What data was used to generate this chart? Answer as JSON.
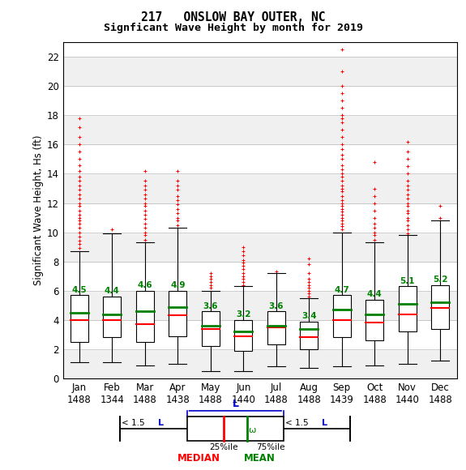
{
  "title1": "217   ONSLOW BAY OUTER, NC",
  "title2": "Signficant Wave Height by month for 2019",
  "ylabel": "Significant Wave Height, Hs (ft)",
  "months": [
    "Jan",
    "Feb",
    "Mar",
    "Apr",
    "May",
    "Jun",
    "Jul",
    "Aug",
    "Sep",
    "Oct",
    "Nov",
    "Dec"
  ],
  "counts": [
    1488,
    1344,
    1488,
    1438,
    1488,
    1440,
    1488,
    1488,
    1439,
    1488,
    1440,
    1488
  ],
  "ylim": [
    0,
    23
  ],
  "yticks": [
    0,
    2,
    4,
    6,
    8,
    10,
    12,
    14,
    16,
    18,
    20,
    22
  ],
  "box_stats": [
    {
      "q1": 2.5,
      "median": 4.0,
      "q3": 5.7,
      "mean": 4.5,
      "whislo": 1.1,
      "whishi": 8.7
    },
    {
      "q1": 2.8,
      "median": 4.0,
      "q3": 5.6,
      "mean": 4.4,
      "whislo": 1.1,
      "whishi": 9.9
    },
    {
      "q1": 2.5,
      "median": 3.7,
      "q3": 6.0,
      "mean": 4.6,
      "whislo": 0.9,
      "whishi": 9.3
    },
    {
      "q1": 2.9,
      "median": 4.3,
      "q3": 6.0,
      "mean": 4.9,
      "whislo": 1.0,
      "whishi": 10.3
    },
    {
      "q1": 2.2,
      "median": 3.4,
      "q3": 4.6,
      "mean": 3.6,
      "whislo": 0.5,
      "whishi": 6.0
    },
    {
      "q1": 1.9,
      "median": 2.9,
      "q3": 4.0,
      "mean": 3.2,
      "whislo": 0.5,
      "whishi": 6.3
    },
    {
      "q1": 2.3,
      "median": 3.5,
      "q3": 4.6,
      "mean": 3.6,
      "whislo": 0.8,
      "whishi": 7.2
    },
    {
      "q1": 2.0,
      "median": 2.8,
      "q3": 3.9,
      "mean": 3.4,
      "whislo": 0.7,
      "whishi": 5.5
    },
    {
      "q1": 2.8,
      "median": 4.0,
      "q3": 5.7,
      "mean": 4.7,
      "whislo": 0.8,
      "whishi": 10.0
    },
    {
      "q1": 2.6,
      "median": 3.8,
      "q3": 5.4,
      "mean": 4.4,
      "whislo": 0.9,
      "whishi": 9.3
    },
    {
      "q1": 3.2,
      "median": 4.4,
      "q3": 6.3,
      "mean": 5.1,
      "whislo": 1.0,
      "whishi": 9.8
    },
    {
      "q1": 3.4,
      "median": 4.8,
      "q3": 6.4,
      "mean": 5.2,
      "whislo": 1.2,
      "whishi": 10.8
    }
  ],
  "outliers": [
    [
      8.9,
      9.2,
      9.4,
      9.7,
      10.0,
      10.3,
      10.6,
      10.8,
      11.0,
      11.2,
      11.5,
      11.8,
      12.0,
      12.3,
      12.6,
      12.9,
      13.2,
      13.5,
      13.8,
      14.2,
      14.6,
      15.0,
      15.5,
      16.0,
      16.5,
      17.2,
      17.8
    ],
    [
      10.2
    ],
    [
      9.5,
      9.8,
      10.0,
      10.3,
      10.6,
      10.9,
      11.2,
      11.5,
      11.8,
      12.0,
      12.3,
      12.6,
      12.9,
      13.2,
      13.5,
      14.2
    ],
    [
      10.5,
      10.8,
      11.0,
      11.3,
      11.6,
      11.9,
      12.2,
      12.5,
      12.9,
      13.2,
      13.5,
      14.2
    ],
    [
      6.2,
      6.4,
      6.6,
      6.8,
      7.0,
      7.2
    ],
    [
      6.4,
      6.6,
      6.8,
      7.0,
      7.2,
      7.5,
      7.7,
      7.9,
      8.1,
      8.4,
      8.7,
      9.0
    ],
    [
      7.3
    ],
    [
      5.6,
      5.8,
      6.0,
      6.2,
      6.4,
      6.6,
      6.8,
      7.2,
      7.8,
      8.2
    ],
    [
      10.2,
      10.4,
      10.6,
      10.8,
      11.0,
      11.2,
      11.4,
      11.6,
      11.8,
      12.0,
      12.2,
      12.5,
      12.8,
      13.0,
      13.2,
      13.5,
      13.8,
      14.0,
      14.3,
      14.6,
      15.0,
      15.3,
      15.7,
      16.0,
      16.5,
      17.0,
      17.5,
      17.8,
      18.0,
      18.5,
      19.0,
      19.5,
      20.0,
      21.0,
      22.5
    ],
    [
      9.5,
      9.8,
      10.0,
      10.3,
      10.6,
      11.0,
      11.5,
      12.0,
      12.5,
      13.0,
      14.8
    ],
    [
      9.9,
      10.2,
      10.5,
      10.8,
      11.0,
      11.3,
      11.5,
      11.8,
      12.0,
      12.3,
      12.6,
      12.9,
      13.2,
      13.5,
      14.0,
      14.5,
      15.0,
      15.5,
      16.2
    ],
    [
      11.0,
      11.8
    ]
  ],
  "bg_colors": [
    "#f0f0f0",
    "#ffffff"
  ],
  "box_color": "#ffffff",
  "box_edge_color": "#000000",
  "median_color": "#ff0000",
  "mean_color": "#008000",
  "whisker_color": "#000000",
  "outlier_color": "#ff0000",
  "legend_blue": "#0000cc"
}
